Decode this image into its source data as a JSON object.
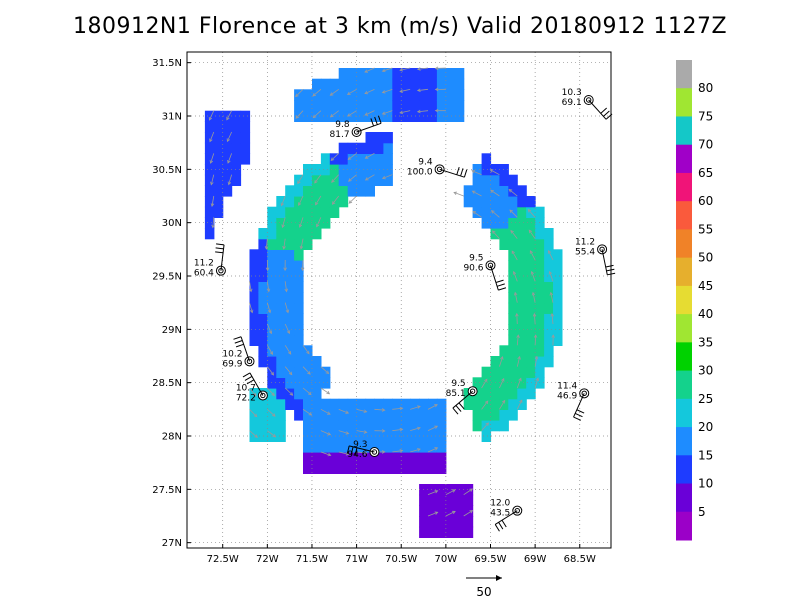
{
  "title": "180912N1 Florence at 3 km (m/s) Valid 20180912 1127Z",
  "chart_data": {
    "type": "heatmap",
    "title": "180912N1 Florence at 3 km (m/s) Valid 20180912 1127Z",
    "xlim": [
      -72.9,
      -68.15
    ],
    "ylim": [
      26.95,
      31.6
    ],
    "x_ticks": [
      {
        "v": -72.5,
        "label": "72.5W"
      },
      {
        "v": -72,
        "label": "72W"
      },
      {
        "v": -71.5,
        "label": "71.5W"
      },
      {
        "v": -71,
        "label": "71W"
      },
      {
        "v": -70.5,
        "label": "70.5W"
      },
      {
        "v": -70,
        "label": "70W"
      },
      {
        "v": -69.5,
        "label": "69.5W"
      },
      {
        "v": -69,
        "label": "69W"
      },
      {
        "v": -68.5,
        "label": "68.5W"
      }
    ],
    "y_ticks": [
      {
        "v": 27,
        "label": "27N"
      },
      {
        "v": 27.5,
        "label": "27.5N"
      },
      {
        "v": 28,
        "label": "28N"
      },
      {
        "v": 28.5,
        "label": "28.5N"
      },
      {
        "v": 29,
        "label": "29N"
      },
      {
        "v": 29.5,
        "label": "29.5N"
      },
      {
        "v": 30,
        "label": "30N"
      },
      {
        "v": 30.5,
        "label": "30.5N"
      },
      {
        "v": 31,
        "label": "31N"
      },
      {
        "v": 31.5,
        "label": "31.5N"
      }
    ],
    "grid": true,
    "eye_center": [
      -70.45,
      29.3
    ],
    "colorbar": {
      "labels": [
        "5",
        "10",
        "15",
        "20",
        "25",
        "30",
        "35",
        "40",
        "45",
        "50",
        "55",
        "60",
        "65",
        "70",
        "75",
        "80"
      ],
      "colors": [
        "#9b00c8",
        "#6a00d8",
        "#1e3cff",
        "#1e8cff",
        "#14c8dc",
        "#14d28c",
        "#00d200",
        "#a0e632",
        "#e6dc32",
        "#e6af2d",
        "#f08228",
        "#fa5a3c",
        "#f01478",
        "#a000c8",
        "#14c8c8",
        "#a0e632",
        "#aaaaaa"
      ]
    },
    "stations": [
      {
        "lon": -68.4,
        "lat": 31.15,
        "top": "10.3",
        "bottom": "69.1"
      },
      {
        "lon": -71.0,
        "lat": 30.85,
        "top": "9.8",
        "bottom": "81.7"
      },
      {
        "lon": -70.07,
        "lat": 30.5,
        "top": "9.4",
        "bottom": "100.0"
      },
      {
        "lon": -68.25,
        "lat": 29.75,
        "top": "11.2",
        "bottom": "55.4"
      },
      {
        "lon": -72.52,
        "lat": 29.55,
        "top": "11.2",
        "bottom": "60.4"
      },
      {
        "lon": -69.5,
        "lat": 29.6,
        "top": "9.5",
        "bottom": "90.6"
      },
      {
        "lon": -72.2,
        "lat": 28.7,
        "top": "10.2",
        "bottom": "69.9"
      },
      {
        "lon": -72.05,
        "lat": 28.38,
        "top": "10.7",
        "bottom": "72.2"
      },
      {
        "lon": -69.7,
        "lat": 28.42,
        "top": "9.5",
        "bottom": "85.1"
      },
      {
        "lon": -68.45,
        "lat": 28.4,
        "top": "11.4",
        "bottom": "46.9"
      },
      {
        "lon": -70.8,
        "lat": 27.85,
        "top": "9.3",
        "bottom": "94.6"
      },
      {
        "lon": -69.2,
        "lat": 27.3,
        "top": "12.0",
        "bottom": "43.5"
      }
    ],
    "reference_vector_label": "50"
  }
}
